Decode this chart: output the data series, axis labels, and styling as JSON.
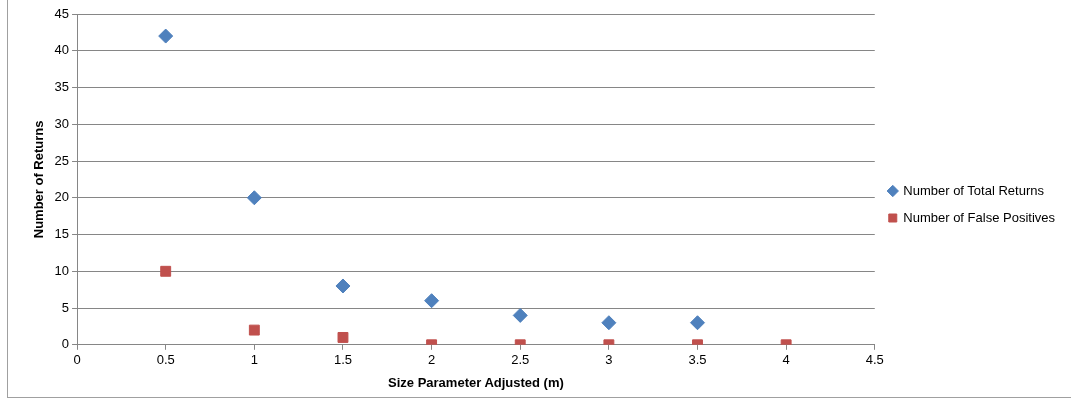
{
  "chart_data": {
    "type": "scatter",
    "xlabel": "Size Parameter Adjusted (m)",
    "ylabel": "Number of Returns",
    "xlim": [
      0,
      4.5
    ],
    "xticks": [
      0,
      0.5,
      1,
      1.5,
      2,
      2.5,
      3,
      3.5,
      4,
      4.5
    ],
    "ylim": [
      0,
      45
    ],
    "yticks": [
      0,
      5,
      10,
      15,
      20,
      25,
      30,
      35,
      40,
      45
    ],
    "grid": "y",
    "legend": "right",
    "series": [
      {
        "name": "Number of Total Returns",
        "color": "#4f81bd",
        "marker": "diamond",
        "x": [
          0.5,
          1,
          1.5,
          2,
          2.5,
          3,
          3.5
        ],
        "values": [
          42,
          20,
          8,
          6,
          4,
          3,
          3
        ]
      },
      {
        "name": "Number of False Positives",
        "color": "#c0504d",
        "marker": "square",
        "x": [
          0.5,
          1,
          1.5,
          2,
          2.5,
          3,
          3.5,
          4
        ],
        "values": [
          10,
          2,
          1,
          0,
          0,
          0,
          0,
          0
        ]
      }
    ]
  }
}
